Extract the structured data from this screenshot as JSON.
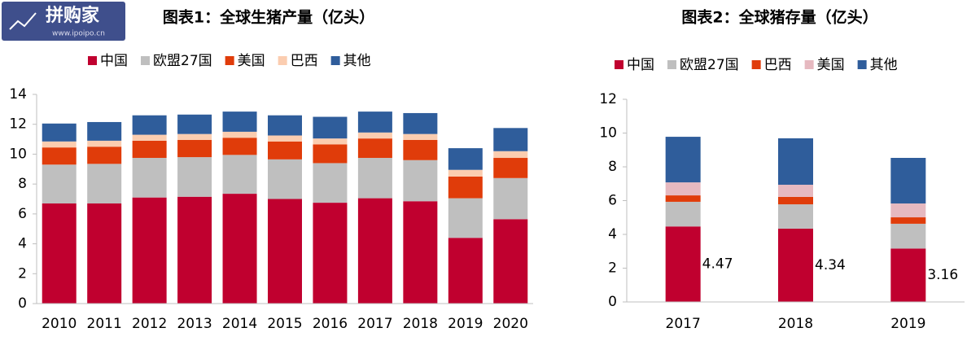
{
  "chart_data": [
    {
      "type": "stacked_bar",
      "title": "图表1：全球生猪产量（亿头）",
      "categories": [
        "2010",
        "2011",
        "2012",
        "2013",
        "2014",
        "2015",
        "2016",
        "2017",
        "2018",
        "2019",
        "2020"
      ],
      "series": [
        {
          "name": "中国",
          "color": "#c0002f",
          "values": [
            6.7,
            6.7,
            7.1,
            7.15,
            7.35,
            7.0,
            6.75,
            7.05,
            6.85,
            4.4,
            5.65
          ]
        },
        {
          "name": "欧盟27国",
          "color": "#bfbfbf",
          "values": [
            2.6,
            2.65,
            2.65,
            2.65,
            2.6,
            2.65,
            2.65,
            2.7,
            2.75,
            2.65,
            2.75
          ]
        },
        {
          "name": "美国",
          "color": "#e03c0a",
          "values": [
            1.15,
            1.15,
            1.15,
            1.15,
            1.15,
            1.2,
            1.25,
            1.3,
            1.35,
            1.45,
            1.35
          ]
        },
        {
          "name": "巴西",
          "color": "#fbcdb0",
          "values": [
            0.4,
            0.4,
            0.4,
            0.4,
            0.4,
            0.4,
            0.4,
            0.4,
            0.4,
            0.45,
            0.45
          ]
        },
        {
          "name": "其他",
          "color": "#2f5d9b",
          "values": [
            1.2,
            1.25,
            1.3,
            1.3,
            1.35,
            1.35,
            1.45,
            1.4,
            1.4,
            1.45,
            1.55
          ]
        }
      ],
      "ylim": [
        0,
        14
      ],
      "yticks": [
        0,
        2,
        4,
        6,
        8,
        10,
        12,
        14
      ],
      "legend": "top"
    },
    {
      "type": "stacked_bar",
      "title": "图表2：全球猪存量（亿头）",
      "categories": [
        "2017",
        "2018",
        "2019"
      ],
      "series": [
        {
          "name": "中国",
          "color": "#c0002f",
          "values": [
            4.47,
            4.34,
            3.16
          ],
          "show_values": true
        },
        {
          "name": "欧盟27国",
          "color": "#bfbfbf",
          "values": [
            1.46,
            1.44,
            1.47
          ]
        },
        {
          "name": "巴西",
          "color": "#e03c0a",
          "values": [
            0.38,
            0.44,
            0.38
          ]
        },
        {
          "name": "美国",
          "color": "#e6b9c0",
          "values": [
            0.77,
            0.72,
            0.82
          ]
        },
        {
          "name": "其他",
          "color": "#2f5d9b",
          "values": [
            2.7,
            2.75,
            2.7
          ]
        }
      ],
      "ylim": [
        0,
        12
      ],
      "yticks": [
        0,
        2,
        4,
        6,
        8,
        10,
        12
      ],
      "legend": "top"
    }
  ],
  "watermark": {
    "brand": "拼购家",
    "url": "www.ipoipo.cn"
  }
}
